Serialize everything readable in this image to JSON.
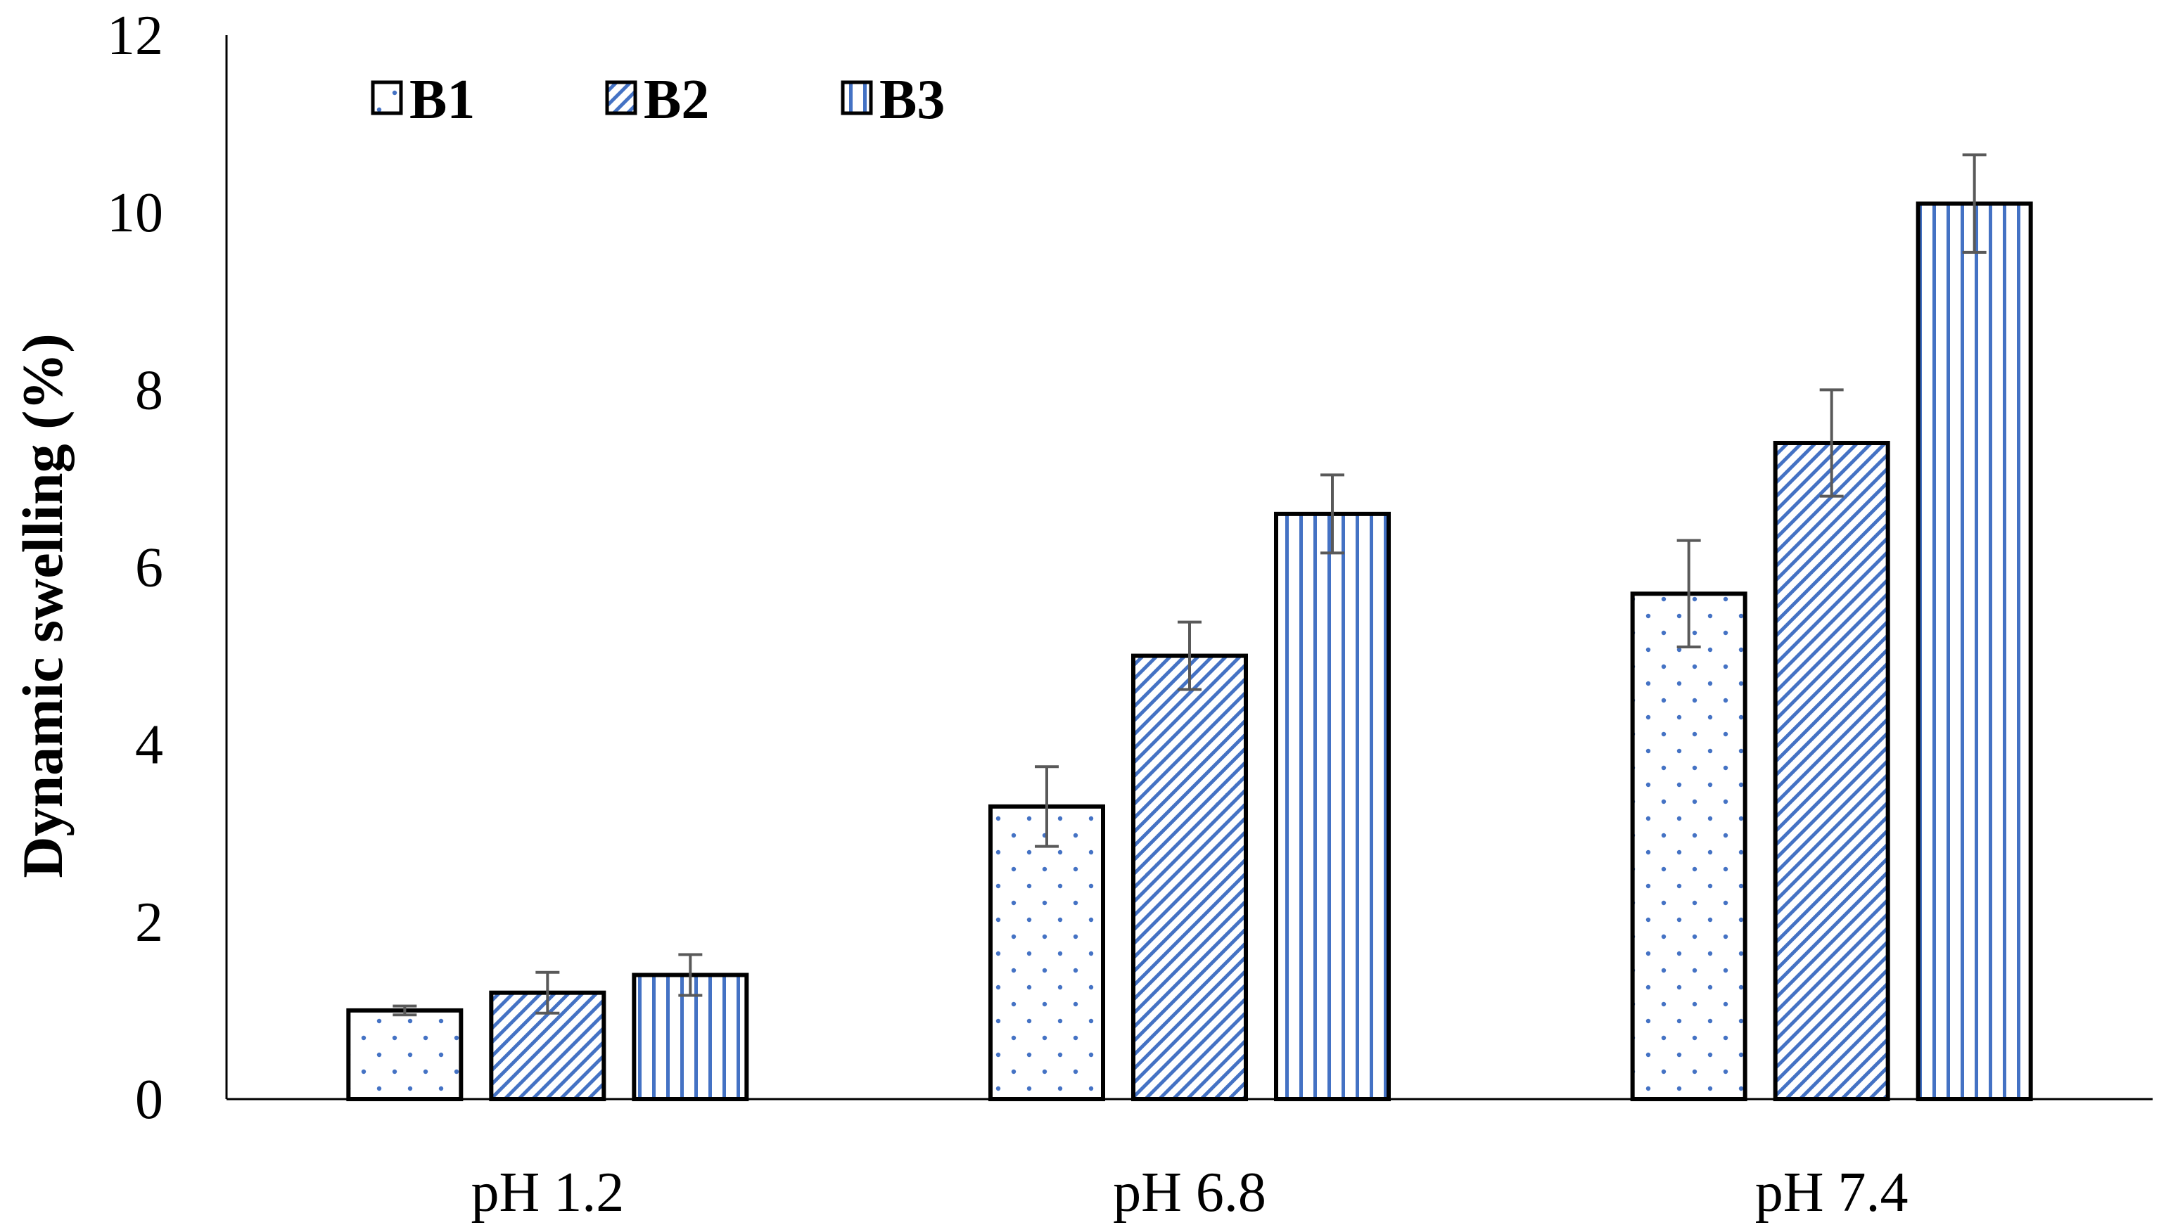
{
  "chart_data": {
    "type": "bar",
    "title": "",
    "xlabel": "",
    "ylabel": "Dynamic swelling (%)",
    "ylim": [
      0,
      12
    ],
    "yticks": [
      0,
      2,
      4,
      6,
      8,
      10,
      12
    ],
    "categories": [
      "pH 1.2",
      "pH 6.8",
      "pH 7.4"
    ],
    "series": [
      {
        "name": "B1",
        "pattern": "dots",
        "values": [
          1.0,
          3.3,
          5.7
        ],
        "errors": [
          0.05,
          0.45,
          0.6
        ]
      },
      {
        "name": "B2",
        "pattern": "diagonal",
        "values": [
          1.2,
          5.0,
          7.4
        ],
        "errors": [
          0.23,
          0.38,
          0.6
        ]
      },
      {
        "name": "B3",
        "pattern": "vertical",
        "values": [
          1.4,
          6.6,
          10.1
        ],
        "errors": [
          0.23,
          0.44,
          0.55
        ]
      }
    ],
    "legend": {
      "position": "top-left",
      "orientation": "horizontal"
    },
    "grid": false,
    "colors": {
      "pattern": "#4472C4",
      "outline": "#000000",
      "error_bar": "#595959",
      "axis": "#000000"
    }
  }
}
